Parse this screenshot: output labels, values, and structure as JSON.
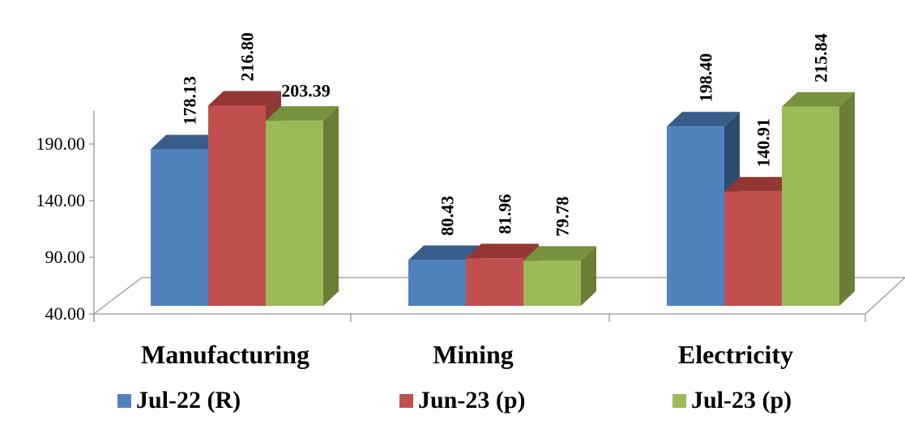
{
  "chart_data": {
    "type": "bar",
    "categories": [
      "Manufacturing",
      "Mining",
      "Electricity"
    ],
    "series": [
      {
        "name": "Jul-22 (R)",
        "values": [
          178.13,
          80.43,
          198.4
        ],
        "labels": [
          "178.13",
          "80.43",
          "198.40"
        ],
        "color": "#4F81BD",
        "top_color": "#385D8A",
        "side_color": "#2E4C72"
      },
      {
        "name": "Jun-23 (p)",
        "values": [
          216.8,
          81.96,
          140.91
        ],
        "labels": [
          "216.80",
          "81.96",
          "140.91"
        ],
        "color": "#C0504D",
        "top_color": "#943634",
        "side_color": "#8C3A38"
      },
      {
        "name": "Jul-23 (p)",
        "values": [
          203.39,
          79.78,
          215.84
        ],
        "labels": [
          "203.39",
          "79.78",
          "215.84"
        ],
        "color": "#9BBB59",
        "top_color": "#76923C",
        "side_color": "#6A7F35"
      }
    ],
    "y_ticks": [
      "40.00",
      "90.00",
      "140.00",
      "190.00"
    ],
    "ylim": [
      40,
      240
    ],
    "legend_position": "bottom",
    "grid": false,
    "style": "3d-clustered-column"
  }
}
